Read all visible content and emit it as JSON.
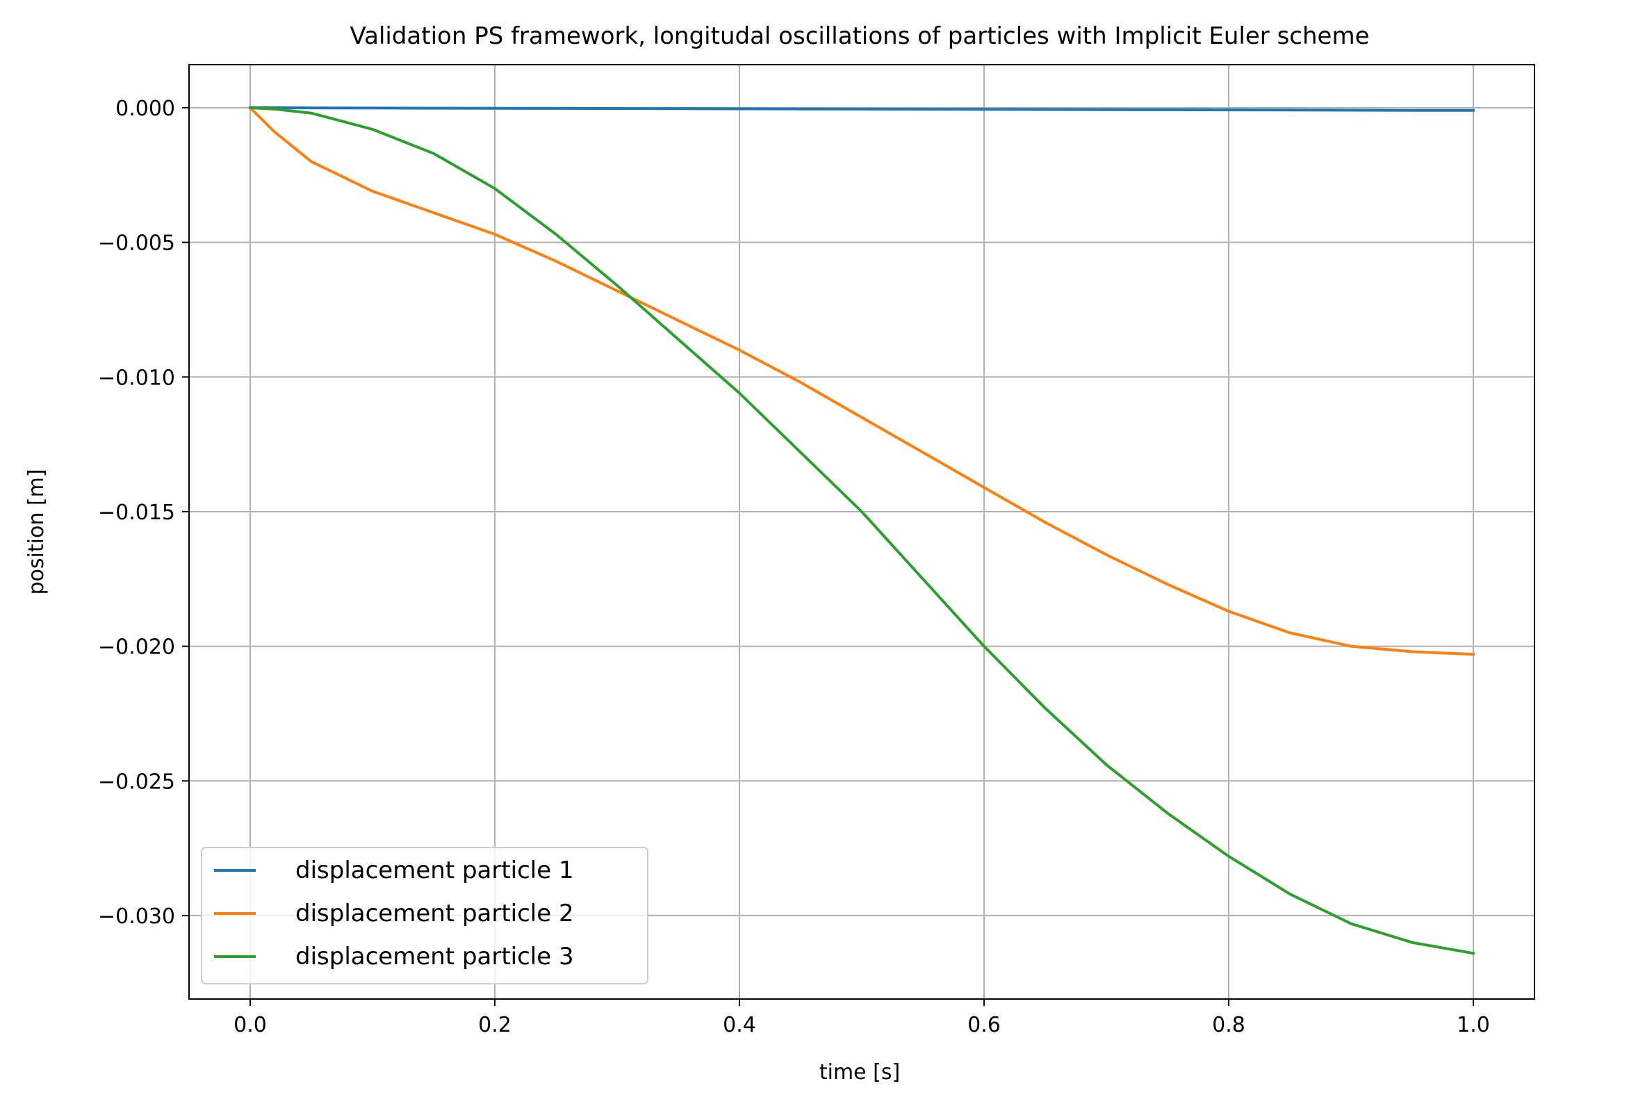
{
  "chart_data": {
    "type": "line",
    "title": "Validation PS framework, longitudal oscillations of particles with Implicit Euler scheme",
    "xlabel": "time [s]",
    "ylabel": "position [m]",
    "xlim": [
      -0.05,
      1.05
    ],
    "ylim": [
      -0.0331,
      0.0016
    ],
    "grid": true,
    "legend_position": "lower-left",
    "x_ticks": [
      {
        "value": 0.0,
        "label": "0.0"
      },
      {
        "value": 0.2,
        "label": "0.2"
      },
      {
        "value": 0.4,
        "label": "0.4"
      },
      {
        "value": 0.6,
        "label": "0.6"
      },
      {
        "value": 0.8,
        "label": "0.8"
      },
      {
        "value": 1.0,
        "label": "1.0"
      }
    ],
    "y_ticks": [
      {
        "value": 0.0,
        "label": "0.000"
      },
      {
        "value": -0.005,
        "label": "−0.005"
      },
      {
        "value": -0.01,
        "label": "−0.010"
      },
      {
        "value": -0.015,
        "label": "−0.015"
      },
      {
        "value": -0.02,
        "label": "−0.020"
      },
      {
        "value": -0.025,
        "label": "−0.025"
      },
      {
        "value": -0.03,
        "label": "−0.030"
      }
    ],
    "x": [
      0.0,
      0.02,
      0.05,
      0.1,
      0.15,
      0.2,
      0.25,
      0.3,
      0.35,
      0.4,
      0.45,
      0.5,
      0.55,
      0.6,
      0.65,
      0.7,
      0.75,
      0.8,
      0.85,
      0.9,
      0.95,
      1.0
    ],
    "series": [
      {
        "name": "displacement particle 1",
        "color": "#1f77b4",
        "values": [
          0.0,
          -2e-06,
          -5e-06,
          -1e-05,
          -1.5e-05,
          -2e-05,
          -2.5e-05,
          -3e-05,
          -3.5e-05,
          -4e-05,
          -4.5e-05,
          -5e-05,
          -5.5e-05,
          -6e-05,
          -6.5e-05,
          -7e-05,
          -7.5e-05,
          -8e-05,
          -8.5e-05,
          -9e-05,
          -9.5e-05,
          -0.0001
        ]
      },
      {
        "name": "displacement particle 2",
        "color": "#ff7f0e",
        "values": [
          0.0,
          -0.0009,
          -0.002,
          -0.0031,
          -0.0039,
          -0.0047,
          -0.0057,
          -0.0068,
          -0.0079,
          -0.009,
          -0.0102,
          -0.0115,
          -0.0128,
          -0.0141,
          -0.0154,
          -0.0166,
          -0.0177,
          -0.0187,
          -0.0195,
          -0.02,
          -0.0202,
          -0.0203
        ]
      },
      {
        "name": "displacement particle 3",
        "color": "#2ca02c",
        "values": [
          0.0,
          -5e-05,
          -0.0002,
          -0.0008,
          -0.0017,
          -0.003,
          -0.0047,
          -0.0066,
          -0.0086,
          -0.0106,
          -0.0128,
          -0.015,
          -0.0175,
          -0.02,
          -0.0223,
          -0.0244,
          -0.0262,
          -0.0278,
          -0.0292,
          -0.0303,
          -0.031,
          -0.0314
        ]
      }
    ]
  }
}
